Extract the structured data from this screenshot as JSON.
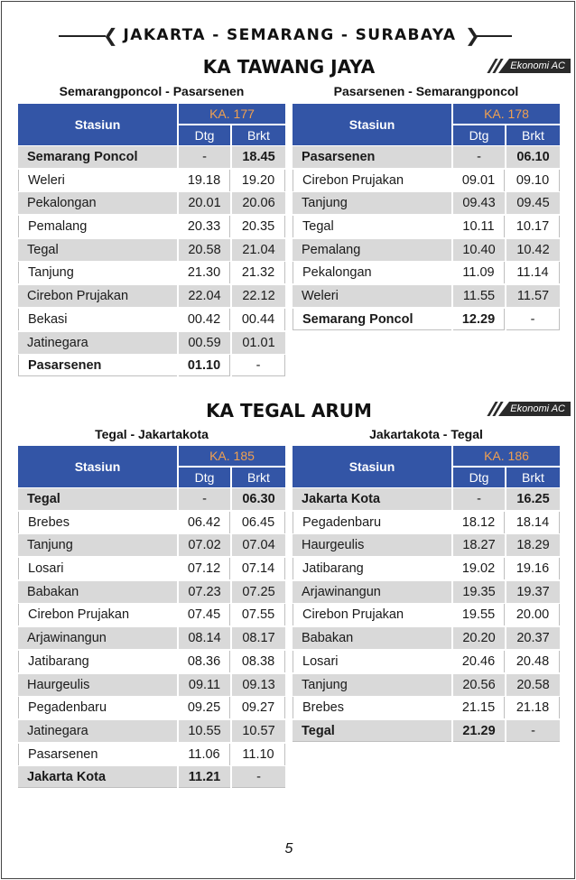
{
  "header": {
    "route_title": "JAKARTA - SEMARANG - SURABAYA"
  },
  "sections": [
    {
      "train_name": "KA TAWANG JAYA",
      "class_badge": "Ekonomi AC",
      "tables": [
        {
          "route": "Semarangponcol - Pasarsenen",
          "col_station": "Stasiun",
          "ka_prefix": "KA.",
          "ka_number": "177",
          "col_dtg": "Dtg",
          "col_brkt": "Brkt",
          "rows": [
            {
              "station": "Semarang Poncol",
              "dtg": "-",
              "brkt": "18.45"
            },
            {
              "station": "Weleri",
              "dtg": "19.18",
              "brkt": "19.20"
            },
            {
              "station": "Pekalongan",
              "dtg": "20.01",
              "brkt": "20.06"
            },
            {
              "station": "Pemalang",
              "dtg": "20.33",
              "brkt": "20.35"
            },
            {
              "station": "Tegal",
              "dtg": "20.58",
              "brkt": "21.04"
            },
            {
              "station": "Tanjung",
              "dtg": "21.30",
              "brkt": "21.32"
            },
            {
              "station": "Cirebon Prujakan",
              "dtg": "22.04",
              "brkt": "22.12"
            },
            {
              "station": "Bekasi",
              "dtg": "00.42",
              "brkt": "00.44"
            },
            {
              "station": "Jatinegara",
              "dtg": "00.59",
              "brkt": "01.01"
            },
            {
              "station": "Pasarsenen",
              "dtg": "01.10",
              "brkt": "-"
            }
          ]
        },
        {
          "route": "Pasarsenen - Semarangponcol",
          "col_station": "Stasiun",
          "ka_prefix": "KA.",
          "ka_number": "178",
          "col_dtg": "Dtg",
          "col_brkt": "Brkt",
          "rows": [
            {
              "station": "Pasarsenen",
              "dtg": "-",
              "brkt": "06.10"
            },
            {
              "station": "Cirebon Prujakan",
              "dtg": "09.01",
              "brkt": "09.10"
            },
            {
              "station": "Tanjung",
              "dtg": "09.43",
              "brkt": "09.45"
            },
            {
              "station": "Tegal",
              "dtg": "10.11",
              "brkt": "10.17"
            },
            {
              "station": "Pemalang",
              "dtg": "10.40",
              "brkt": "10.42"
            },
            {
              "station": "Pekalongan",
              "dtg": "11.09",
              "brkt": "11.14"
            },
            {
              "station": "Weleri",
              "dtg": "11.55",
              "brkt": "11.57"
            },
            {
              "station": "Semarang Poncol",
              "dtg": "12.29",
              "brkt": "-"
            }
          ]
        }
      ]
    },
    {
      "train_name": "KA TEGAL ARUM",
      "class_badge": "Ekonomi AC",
      "tables": [
        {
          "route": "Tegal - Jakartakota",
          "col_station": "Stasiun",
          "ka_prefix": "KA.",
          "ka_number": "185",
          "col_dtg": "Dtg",
          "col_brkt": "Brkt",
          "rows": [
            {
              "station": "Tegal",
              "dtg": "-",
              "brkt": "06.30"
            },
            {
              "station": "Brebes",
              "dtg": "06.42",
              "brkt": "06.45"
            },
            {
              "station": "Tanjung",
              "dtg": "07.02",
              "brkt": "07.04"
            },
            {
              "station": "Losari",
              "dtg": "07.12",
              "brkt": "07.14"
            },
            {
              "station": "Babakan",
              "dtg": "07.23",
              "brkt": "07.25"
            },
            {
              "station": "Cirebon Prujakan",
              "dtg": "07.45",
              "brkt": "07.55"
            },
            {
              "station": "Arjawinangun",
              "dtg": "08.14",
              "brkt": "08.17"
            },
            {
              "station": "Jatibarang",
              "dtg": "08.36",
              "brkt": "08.38"
            },
            {
              "station": "Haurgeulis",
              "dtg": "09.11",
              "brkt": "09.13"
            },
            {
              "station": "Pegadenbaru",
              "dtg": "09.25",
              "brkt": "09.27"
            },
            {
              "station": "Jatinegara",
              "dtg": "10.55",
              "brkt": "10.57"
            },
            {
              "station": "Pasarsenen",
              "dtg": "11.06",
              "brkt": "11.10"
            },
            {
              "station": "Jakarta Kota",
              "dtg": "11.21",
              "brkt": "-"
            }
          ]
        },
        {
          "route": "Jakartakota - Tegal",
          "col_station": "Stasiun",
          "ka_prefix": "KA.",
          "ka_number": "186",
          "col_dtg": "Dtg",
          "col_brkt": "Brkt",
          "rows": [
            {
              "station": "Jakarta Kota",
              "dtg": "-",
              "brkt": "16.25"
            },
            {
              "station": "Pegadenbaru",
              "dtg": "18.12",
              "brkt": "18.14"
            },
            {
              "station": "Haurgeulis",
              "dtg": "18.27",
              "brkt": "18.29"
            },
            {
              "station": "Jatibarang",
              "dtg": "19.02",
              "brkt": "19.16"
            },
            {
              "station": "Arjawinangun",
              "dtg": "19.35",
              "brkt": "19.37"
            },
            {
              "station": "Cirebon Prujakan",
              "dtg": "19.55",
              "brkt": "20.00"
            },
            {
              "station": "Babakan",
              "dtg": "20.20",
              "brkt": "20.37"
            },
            {
              "station": "Losari",
              "dtg": "20.46",
              "brkt": "20.48"
            },
            {
              "station": "Tanjung",
              "dtg": "20.56",
              "brkt": "20.58"
            },
            {
              "station": "Brebes",
              "dtg": "21.15",
              "brkt": "21.18"
            },
            {
              "station": "Tegal",
              "dtg": "21.29",
              "brkt": "-"
            }
          ]
        }
      ]
    }
  ],
  "page_number": "5"
}
